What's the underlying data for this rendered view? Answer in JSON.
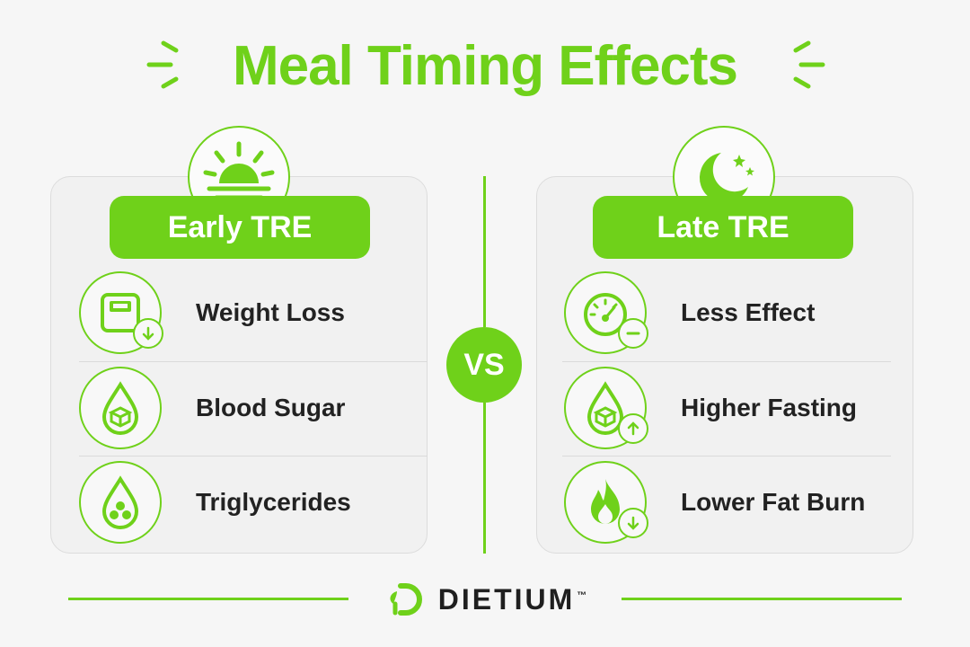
{
  "title": "Meal Timing Effects",
  "colors": {
    "accent": "#6fd11a",
    "text": "#1f1f1f",
    "background": "#f6f6f6"
  },
  "left_panel": {
    "header": "Early TRE",
    "header_icon": "sunrise-icon",
    "items": [
      {
        "label": "Weight Loss",
        "icon": "scale-down-icon"
      },
      {
        "label": "Blood Sugar",
        "icon": "blood-drop-cube-icon"
      },
      {
        "label": "Triglycerides",
        "icon": "drop-dots-icon"
      }
    ]
  },
  "vs_label": "VS",
  "right_panel": {
    "header": "Late TRE",
    "header_icon": "moon-stars-icon",
    "items": [
      {
        "label": "Less Effect",
        "icon": "gauge-minus-icon"
      },
      {
        "label": "Higher Fasting",
        "icon": "blood-drop-up-icon"
      },
      {
        "label": "Lower Fat Burn",
        "icon": "flame-down-icon"
      }
    ]
  },
  "brand": {
    "name": "DIETIUM",
    "trademark": "™",
    "icon": "dietium-logo-icon"
  }
}
